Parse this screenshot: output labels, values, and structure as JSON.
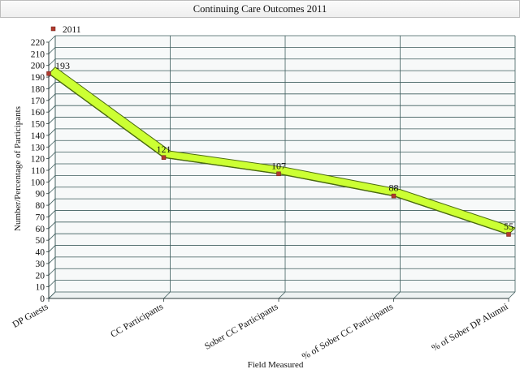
{
  "chart_data": {
    "type": "line",
    "title": "Continuing Care Outcomes 2011",
    "xlabel": "Field Measured",
    "ylabel": "Number/Percentage of Participants",
    "categories": [
      "DP Guests",
      "CC Participants",
      "Sober CC Participants",
      "% of Sober CC Participants",
      "% of Sober DP Alumni"
    ],
    "series": [
      {
        "name": "2011",
        "values": [
          193,
          121,
          107,
          88,
          55
        ]
      }
    ],
    "ylim": [
      0,
      220
    ],
    "ytick_step": 10,
    "grid": true,
    "legend": "top-left",
    "colors": {
      "series_fill": "#ccff33",
      "series_edge": "#4a6a10",
      "marker": "#b03a2e",
      "axis": "#2a3a3a",
      "grid": "#3d5c5c",
      "wall": "#f7f9f9"
    }
  }
}
